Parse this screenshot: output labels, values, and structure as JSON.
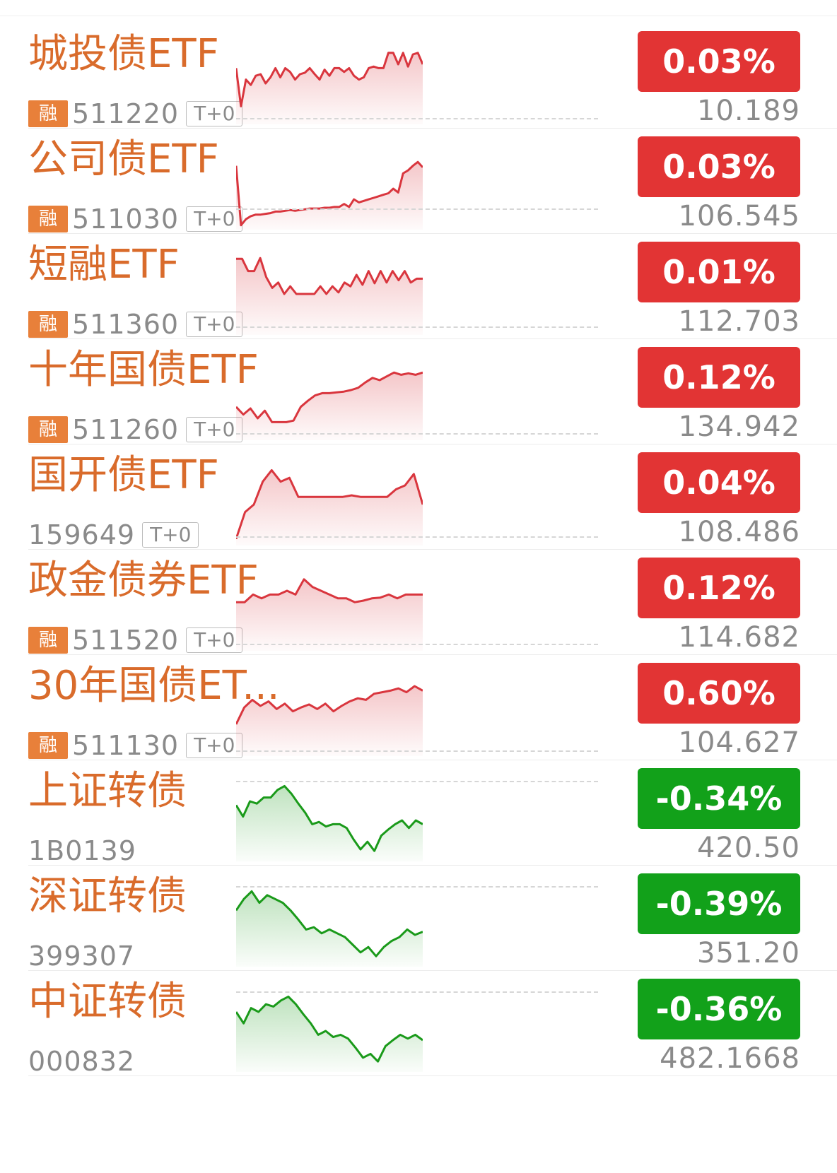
{
  "colors": {
    "name_orange": "#d96b2b",
    "code_gray": "#8a8a8a",
    "rong_bg": "#e8803a",
    "up_red": "#e23434",
    "down_green": "#12a11a",
    "line_red": "#d9363e",
    "line_green": "#1a9a1a"
  },
  "rows": [
    {
      "name": "城投债ETF",
      "badge": "融",
      "code": "511220",
      "tag": "T+0",
      "change": "0.03%",
      "price": "10.189",
      "direction": "up",
      "spark": [
        0.3,
        0.8,
        0.45,
        0.52,
        0.4,
        0.38,
        0.5,
        0.42,
        0.3,
        0.42,
        0.3,
        0.35,
        0.45,
        0.38,
        0.36,
        0.3,
        0.38,
        0.45,
        0.32,
        0.4,
        0.3,
        0.3,
        0.35,
        0.3,
        0.4,
        0.45,
        0.42,
        0.3,
        0.28,
        0.3,
        0.3,
        0.1,
        0.1,
        0.25,
        0.1,
        0.28,
        0.12,
        0.1,
        0.25
      ],
      "dash_pos": 0.92
    },
    {
      "name": "公司债ETF",
      "badge": "融",
      "code": "511030",
      "tag": "T+0",
      "change": "0.03%",
      "price": "106.545",
      "direction": "up",
      "spark": [
        0.2,
        0.98,
        0.9,
        0.86,
        0.84,
        0.84,
        0.83,
        0.82,
        0.8,
        0.8,
        0.79,
        0.78,
        0.79,
        0.78,
        0.77,
        0.76,
        0.76,
        0.76,
        0.75,
        0.75,
        0.74,
        0.74,
        0.7,
        0.74,
        0.64,
        0.68,
        0.66,
        0.64,
        0.62,
        0.6,
        0.58,
        0.56,
        0.5,
        0.55,
        0.3,
        0.26,
        0.2,
        0.15,
        0.22
      ],
      "dash_pos": 0.74
    },
    {
      "name": "短融ETF",
      "badge": "融",
      "code": "511360",
      "tag": "T+0",
      "change": "0.01%",
      "price": "112.703",
      "direction": "up",
      "spark": [
        0.04,
        0.04,
        0.2,
        0.2,
        0.03,
        0.28,
        0.42,
        0.35,
        0.5,
        0.4,
        0.5,
        0.5,
        0.5,
        0.5,
        0.4,
        0.5,
        0.4,
        0.48,
        0.35,
        0.4,
        0.25,
        0.38,
        0.2,
        0.36,
        0.2,
        0.35,
        0.2,
        0.32,
        0.2,
        0.35,
        0.3,
        0.3
      ],
      "dash_pos": 0.9
    },
    {
      "name": "十年国债ETF",
      "badge": "融",
      "code": "511260",
      "tag": "T+0",
      "change": "0.12%",
      "price": "134.942",
      "direction": "up",
      "spark": [
        0.6,
        0.7,
        0.62,
        0.75,
        0.65,
        0.8,
        0.8,
        0.8,
        0.78,
        0.6,
        0.52,
        0.45,
        0.42,
        0.42,
        0.41,
        0.4,
        0.38,
        0.35,
        0.28,
        0.22,
        0.25,
        0.2,
        0.15,
        0.18,
        0.16,
        0.18,
        0.15
      ],
      "dash_pos": 0.91
    },
    {
      "name": "国开债ETF",
      "badge": "",
      "code": "159649",
      "tag": "T+0",
      "change": "0.04%",
      "price": "108.486",
      "direction": "up",
      "spark": [
        0.95,
        0.6,
        0.5,
        0.2,
        0.05,
        0.2,
        0.15,
        0.4,
        0.4,
        0.4,
        0.4,
        0.4,
        0.4,
        0.38,
        0.4,
        0.4,
        0.4,
        0.4,
        0.3,
        0.25,
        0.1,
        0.5
      ],
      "dash_pos": 0.89
    },
    {
      "name": "政金债券ETF",
      "badge": "融",
      "code": "511520",
      "tag": "T+0",
      "change": "0.12%",
      "price": "114.682",
      "direction": "up",
      "spark": [
        0.4,
        0.4,
        0.3,
        0.35,
        0.3,
        0.3,
        0.25,
        0.3,
        0.1,
        0.2,
        0.25,
        0.3,
        0.35,
        0.35,
        0.4,
        0.38,
        0.35,
        0.34,
        0.3,
        0.35,
        0.3,
        0.3,
        0.3
      ],
      "dash_pos": 0.91
    },
    {
      "name": "30年国债ET...",
      "badge": "融",
      "code": "511130",
      "tag": "T+0",
      "change": "0.60%",
      "price": "104.627",
      "direction": "up",
      "spark": [
        0.62,
        0.4,
        0.3,
        0.38,
        0.32,
        0.42,
        0.35,
        0.45,
        0.4,
        0.36,
        0.42,
        0.35,
        0.45,
        0.38,
        0.32,
        0.28,
        0.3,
        0.22,
        0.2,
        0.18,
        0.15,
        0.2,
        0.12,
        0.18
      ],
      "dash_pos": 0.93
    },
    {
      "name": "上证转债",
      "badge": "",
      "code": "1B0139",
      "tag": "",
      "change": "-0.34%",
      "price": "420.50",
      "direction": "down",
      "spark": [
        0.3,
        0.45,
        0.25,
        0.28,
        0.2,
        0.2,
        0.1,
        0.05,
        0.15,
        0.28,
        0.4,
        0.55,
        0.52,
        0.58,
        0.55,
        0.55,
        0.6,
        0.75,
        0.88,
        0.78,
        0.9,
        0.7,
        0.62,
        0.55,
        0.5,
        0.6,
        0.5,
        0.55
      ],
      "dash_pos": 0.02
    },
    {
      "name": "深证转债",
      "badge": "",
      "code": "399307",
      "tag": "",
      "change": "-0.39%",
      "price": "351.20",
      "direction": "down",
      "spark": [
        0.3,
        0.15,
        0.05,
        0.2,
        0.1,
        0.15,
        0.2,
        0.3,
        0.42,
        0.55,
        0.52,
        0.6,
        0.55,
        0.6,
        0.65,
        0.75,
        0.85,
        0.78,
        0.9,
        0.78,
        0.7,
        0.65,
        0.55,
        0.62,
        0.58
      ],
      "dash_pos": 0.02
    },
    {
      "name": "中证转债",
      "badge": "",
      "code": "000832",
      "tag": "",
      "change": "-0.36%",
      "price": "482.1668",
      "direction": "down",
      "spark": [
        0.25,
        0.4,
        0.2,
        0.25,
        0.15,
        0.18,
        0.1,
        0.05,
        0.15,
        0.28,
        0.4,
        0.55,
        0.5,
        0.58,
        0.55,
        0.6,
        0.72,
        0.85,
        0.8,
        0.9,
        0.7,
        0.62,
        0.55,
        0.6,
        0.55,
        0.62
      ],
      "dash_pos": 0.02
    }
  ]
}
